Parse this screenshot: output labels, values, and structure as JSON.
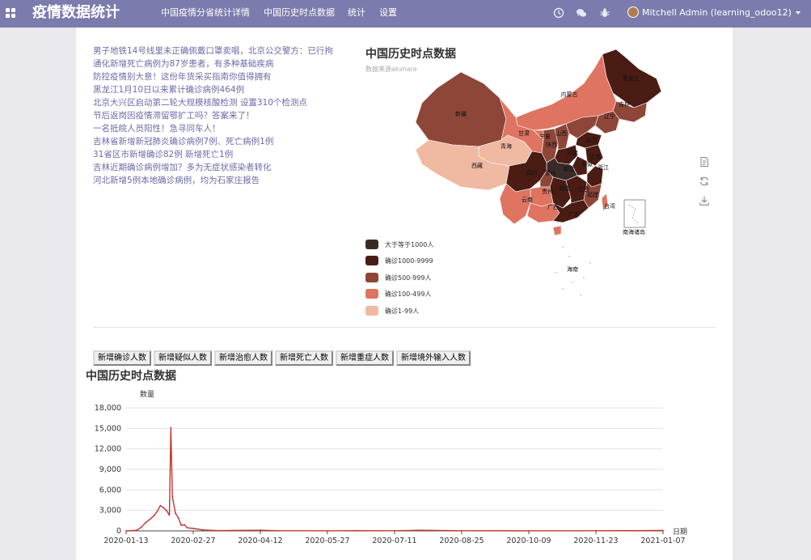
{
  "topbar": {
    "brand": "疫情数据统计",
    "menu": [
      "中国疫情分省统计详情",
      "中国历史时点数据",
      "统计",
      "设置"
    ],
    "icons": [
      "clock-icon",
      "chat-icon",
      "bug-icon"
    ],
    "user": "Mitchell Admin (learning_odoo12)"
  },
  "news": [
    "男子地铁14号线里未正确佩戴口罩卖唱，北京公交警方：已行拘",
    "通化新增死亡病例为87岁患者，有多种基础疾病",
    "防控疫情别大意！这份年货采买指南你值得拥有",
    "黑龙江1月10日以来累计确诊病例464例",
    "北京大兴区启动第二轮大规模核酸检测 设置310个检测点",
    "节后返岗因疫情滞留鄂扩工吗？答案来了！",
    "一名抵皖人员阳性！急寻同车人！",
    "吉林省新增新冠肺炎确诊病例7例、死亡病例1例",
    "31省区市新增确诊82例 新增死亡1例",
    "吉林近期确诊病例增加？多为无症状感染者转化",
    "河北新增5例本地确诊病例，均为石家庄报告"
  ],
  "map": {
    "title": "中国历史时点数据",
    "subtitle": "数据来源akshare",
    "legend": [
      {
        "label": "大于等于1000人",
        "color": "#3a2b28"
      },
      {
        "label": "确诊1000-9999",
        "color": "#4a1c14"
      },
      {
        "label": "确诊500-999人",
        "color": "#8e4638"
      },
      {
        "label": "确诊100-499人",
        "color": "#de7461"
      },
      {
        "label": "确诊1-99人",
        "color": "#f0b9a1"
      }
    ],
    "province_labels": [
      "内蒙古",
      "黑龙江",
      "吉林",
      "辽宁",
      "新疆",
      "甘肃",
      "宁夏",
      "山西",
      "陕西",
      "青海",
      "西藏",
      "四川",
      "重庆",
      "湖北",
      "安徽",
      "江苏",
      "山东",
      "河南",
      "贵州",
      "湖南",
      "江西",
      "福建",
      "浙江",
      "云南",
      "广西",
      "广东",
      "台湾",
      "海南",
      "南海诸岛"
    ],
    "tools": [
      "data-view-icon",
      "restore-icon",
      "download-icon"
    ]
  },
  "buttons": [
    "新增确诊人数",
    "新增疑似人数",
    "新增治愈人数",
    "新增死亡人数",
    "新增重症人数",
    "新增境外输入人数"
  ],
  "chart_data": {
    "type": "line",
    "title": "中国历史时点数据",
    "xlabel": "日期",
    "ylabel": "数量",
    "ylim": [
      0,
      18000
    ],
    "yticks": [
      0,
      3000,
      6000,
      9000,
      12000,
      15000,
      18000
    ],
    "ytick_labels": [
      "0",
      "3,000",
      "6,000",
      "9,000",
      "12,000",
      "15,000",
      "18,000"
    ],
    "xlim": [
      "2020-01-13",
      "2021-01-07"
    ],
    "xtick_labels": [
      "2020-01-13",
      "2020-02-27",
      "2020-04-12",
      "2020-05-27",
      "2020-07-11",
      "2020-08-25",
      "2020-10-09",
      "2020-11-23",
      "2021-01-07"
    ],
    "color": "#c23531",
    "grid": true,
    "series": [
      {
        "values": [
          [
            "2020-01-13",
            0
          ],
          [
            "2020-01-20",
            80
          ],
          [
            "2020-01-23",
            500
          ],
          [
            "2020-01-26",
            1200
          ],
          [
            "2020-01-29",
            1700
          ],
          [
            "2020-02-01",
            2300
          ],
          [
            "2020-02-03",
            2900
          ],
          [
            "2020-02-05",
            3700
          ],
          [
            "2020-02-07",
            3400
          ],
          [
            "2020-02-09",
            3000
          ],
          [
            "2020-02-11",
            2300
          ],
          [
            "2020-02-12",
            15100
          ],
          [
            "2020-02-13",
            5000
          ],
          [
            "2020-02-15",
            2600
          ],
          [
            "2020-02-17",
            1900
          ],
          [
            "2020-02-19",
            800
          ],
          [
            "2020-02-21",
            900
          ],
          [
            "2020-02-23",
            450
          ],
          [
            "2020-02-27",
            350
          ],
          [
            "2020-03-05",
            130
          ],
          [
            "2020-03-15",
            30
          ],
          [
            "2020-03-25",
            70
          ],
          [
            "2020-04-12",
            100
          ],
          [
            "2020-04-25",
            20
          ],
          [
            "2020-05-27",
            10
          ],
          [
            "2020-06-15",
            30
          ],
          [
            "2020-07-11",
            20
          ],
          [
            "2020-07-28",
            100
          ],
          [
            "2020-08-25",
            20
          ],
          [
            "2020-10-09",
            15
          ],
          [
            "2020-11-23",
            20
          ],
          [
            "2020-12-20",
            30
          ],
          [
            "2021-01-07",
            60
          ]
        ]
      }
    ]
  }
}
